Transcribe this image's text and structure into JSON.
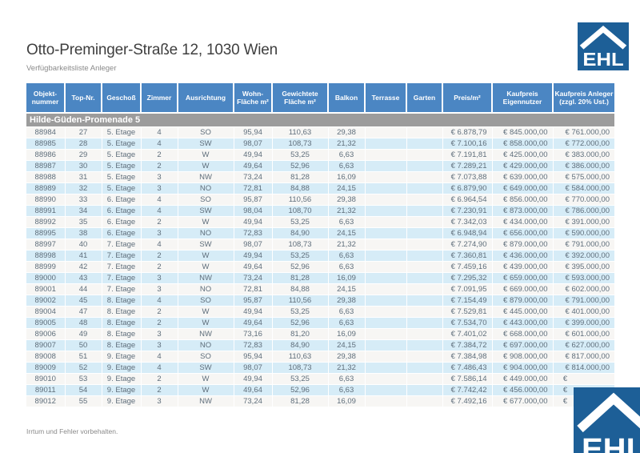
{
  "page": {
    "title": "Otto-Preminger-Straße 12, 1030 Wien",
    "subtitle": "Verfügbarkeitsliste Anleger",
    "footer": "Irrtum und Fehler vorbehalten.",
    "logo_text": "EHL"
  },
  "colors": {
    "header_blue": "#4b86c3",
    "row_blue": "#d6ecf7",
    "row_white": "#f7f6f4",
    "section_gray": "#9c9c9c",
    "logo_blue": "#1d5f97"
  },
  "table": {
    "columns": [
      "Objekt-nummer",
      "Top-Nr.",
      "Geschoß",
      "Zimmer",
      "Ausrichtung",
      "Wohn-Fläche m²",
      "Gewichtete Fläche m²",
      "Balkon",
      "Terrasse",
      "Garten",
      "Preis/m²",
      "Kaufpreis Eigennutzer",
      "Kaufpreis Anleger (zzgl. 20% Ust.)"
    ],
    "section": "Hilde-Güden-Promenade 5",
    "rows": [
      [
        "88984",
        "27",
        "5. Etage",
        "4",
        "SO",
        "95,94",
        "110,63",
        "29,38",
        "",
        "",
        "€ 6.878,79",
        "€ 845.000,00",
        "€ 761.000,00"
      ],
      [
        "88985",
        "28",
        "5. Etage",
        "4",
        "SW",
        "98,07",
        "108,73",
        "21,32",
        "",
        "",
        "€ 7.100,16",
        "€ 858.000,00",
        "€ 772.000,00"
      ],
      [
        "88986",
        "29",
        "5. Etage",
        "2",
        "W",
        "49,94",
        "53,25",
        "6,63",
        "",
        "",
        "€ 7.191,81",
        "€ 425.000,00",
        "€ 383.000,00"
      ],
      [
        "88987",
        "30",
        "5. Etage",
        "2",
        "W",
        "49,64",
        "52,96",
        "6,63",
        "",
        "",
        "€ 7.289,21",
        "€ 429.000,00",
        "€ 386.000,00"
      ],
      [
        "88988",
        "31",
        "5. Etage",
        "3",
        "NW",
        "73,24",
        "81,28",
        "16,09",
        "",
        "",
        "€ 7.073,88",
        "€ 639.000,00",
        "€ 575.000,00"
      ],
      [
        "88989",
        "32",
        "5. Etage",
        "3",
        "NO",
        "72,81",
        "84,88",
        "24,15",
        "",
        "",
        "€ 6.879,90",
        "€ 649.000,00",
        "€ 584.000,00"
      ],
      [
        "88990",
        "33",
        "6. Etage",
        "4",
        "SO",
        "95,87",
        "110,56",
        "29,38",
        "",
        "",
        "€ 6.964,54",
        "€ 856.000,00",
        "€ 770.000,00"
      ],
      [
        "88991",
        "34",
        "6. Etage",
        "4",
        "SW",
        "98,04",
        "108,70",
        "21,32",
        "",
        "",
        "€ 7.230,91",
        "€ 873.000,00",
        "€ 786.000,00"
      ],
      [
        "88992",
        "35",
        "6. Etage",
        "2",
        "W",
        "49,94",
        "53,25",
        "6,63",
        "",
        "",
        "€ 7.342,03",
        "€ 434.000,00",
        "€ 391.000,00"
      ],
      [
        "88995",
        "38",
        "6. Etage",
        "3",
        "NO",
        "72,83",
        "84,90",
        "24,15",
        "",
        "",
        "€ 6.948,94",
        "€ 656.000,00",
        "€ 590.000,00"
      ],
      [
        "88997",
        "40",
        "7. Etage",
        "4",
        "SW",
        "98,07",
        "108,73",
        "21,32",
        "",
        "",
        "€ 7.274,90",
        "€ 879.000,00",
        "€ 791.000,00"
      ],
      [
        "88998",
        "41",
        "7. Etage",
        "2",
        "W",
        "49,94",
        "53,25",
        "6,63",
        "",
        "",
        "€ 7.360,81",
        "€ 436.000,00",
        "€ 392.000,00"
      ],
      [
        "88999",
        "42",
        "7. Etage",
        "2",
        "W",
        "49,64",
        "52,96",
        "6,63",
        "",
        "",
        "€ 7.459,16",
        "€ 439.000,00",
        "€ 395.000,00"
      ],
      [
        "89000",
        "43",
        "7. Etage",
        "3",
        "NW",
        "73,24",
        "81,28",
        "16,09",
        "",
        "",
        "€ 7.295,32",
        "€ 659.000,00",
        "€ 593.000,00"
      ],
      [
        "89001",
        "44",
        "7. Etage",
        "3",
        "NO",
        "72,81",
        "84,88",
        "24,15",
        "",
        "",
        "€ 7.091,95",
        "€ 669.000,00",
        "€ 602.000,00"
      ],
      [
        "89002",
        "45",
        "8. Etage",
        "4",
        "SO",
        "95,87",
        "110,56",
        "29,38",
        "",
        "",
        "€ 7.154,49",
        "€ 879.000,00",
        "€ 791.000,00"
      ],
      [
        "89004",
        "47",
        "8. Etage",
        "2",
        "W",
        "49,94",
        "53,25",
        "6,63",
        "",
        "",
        "€ 7.529,81",
        "€ 445.000,00",
        "€ 401.000,00"
      ],
      [
        "89005",
        "48",
        "8. Etage",
        "2",
        "W",
        "49,64",
        "52,96",
        "6,63",
        "",
        "",
        "€ 7.534,70",
        "€ 443.000,00",
        "€ 399.000,00"
      ],
      [
        "89006",
        "49",
        "8. Etage",
        "3",
        "NW",
        "73,16",
        "81,20",
        "16,09",
        "",
        "",
        "€ 7.401,02",
        "€ 668.000,00",
        "€ 601.000,00"
      ],
      [
        "89007",
        "50",
        "8. Etage",
        "3",
        "NO",
        "72,83",
        "84,90",
        "24,15",
        "",
        "",
        "€ 7.384,72",
        "€ 697.000,00",
        "€ 627.000,00"
      ],
      [
        "89008",
        "51",
        "9. Etage",
        "4",
        "SO",
        "95,94",
        "110,63",
        "29,38",
        "",
        "",
        "€ 7.384,98",
        "€ 908.000,00",
        "€ 817.000,00"
      ],
      [
        "89009",
        "52",
        "9. Etage",
        "4",
        "SW",
        "98,07",
        "108,73",
        "21,32",
        "",
        "",
        "€ 7.486,43",
        "€ 904.000,00",
        "€ 814.000,00"
      ],
      [
        "89010",
        "53",
        "9. Etage",
        "2",
        "W",
        "49,94",
        "53,25",
        "6,63",
        "",
        "",
        "€ 7.586,14",
        "€ 449.000,00",
        "€                    "
      ],
      [
        "89011",
        "54",
        "9. Etage",
        "2",
        "W",
        "49,64",
        "52,96",
        "6,63",
        "",
        "",
        "€ 7.742,42",
        "€ 456.000,00",
        "€                    "
      ],
      [
        "89012",
        "55",
        "9. Etage",
        "3",
        "NW",
        "73,24",
        "81,28",
        "16,09",
        "",
        "",
        "€ 7.492,16",
        "€ 677.000,00",
        "€                    "
      ]
    ]
  }
}
